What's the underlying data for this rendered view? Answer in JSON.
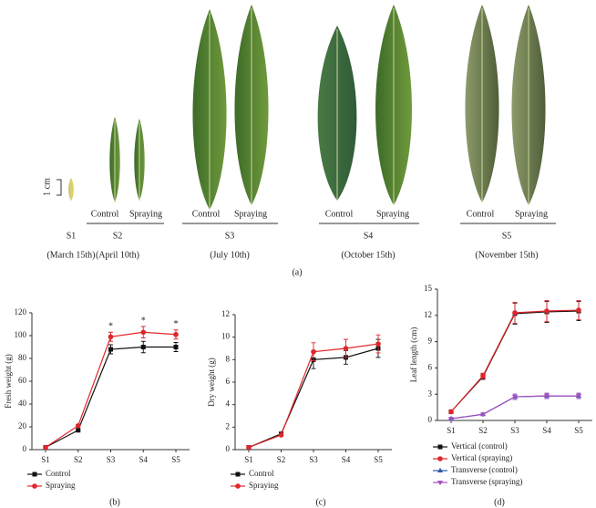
{
  "panel_a": {
    "scale": "1 cm",
    "label": "(a)",
    "stages": [
      {
        "name": "S1",
        "date": "(March 15th)",
        "treatments": []
      },
      {
        "name": "S2",
        "date": "(April 10th)",
        "treatments": [
          "Control",
          "Spraying"
        ]
      },
      {
        "name": "S3",
        "date": "(July 10th)",
        "treatments": [
          "Control",
          "Spraying"
        ]
      },
      {
        "name": "S4",
        "date": "(October 15th)",
        "treatments": [
          "Control",
          "Spraying"
        ]
      },
      {
        "name": "S5",
        "date": "(November 15th)",
        "treatments": [
          "Control",
          "Spraying"
        ]
      }
    ]
  },
  "chart_data": [
    {
      "type": "line",
      "panel_label": "(b)",
      "y_label": "Fresh weight (g)",
      "categories": [
        "S1",
        "S2",
        "S3",
        "S4",
        "S5"
      ],
      "ylim": [
        0,
        120
      ],
      "yticks": [
        0,
        20,
        40,
        60,
        80,
        100,
        120
      ],
      "significance": [
        null,
        null,
        "*",
        "*",
        "*"
      ],
      "series": [
        {
          "name": "Control",
          "color": "#111111",
          "marker": "square",
          "values": [
            2,
            17,
            88,
            90,
            90
          ],
          "errors": [
            1,
            1,
            4,
            5,
            4
          ]
        },
        {
          "name": "Spraying",
          "color": "#e0262b",
          "marker": "circle",
          "values": [
            2,
            21,
            99,
            103,
            101
          ],
          "errors": [
            1,
            1,
            4,
            5,
            4
          ]
        }
      ]
    },
    {
      "type": "line",
      "panel_label": "(c)",
      "y_label": "Dry weight (g)",
      "categories": [
        "S1",
        "S2",
        "S3",
        "S4",
        "S5"
      ],
      "ylim": [
        0,
        12
      ],
      "yticks": [
        0,
        2,
        4,
        6,
        8,
        10,
        12
      ],
      "series": [
        {
          "name": "Control",
          "color": "#111111",
          "marker": "square",
          "values": [
            0.2,
            1.4,
            8.0,
            8.2,
            9.0
          ],
          "errors": [
            0.1,
            0.1,
            0.8,
            0.6,
            0.8
          ]
        },
        {
          "name": "Spraying",
          "color": "#e0262b",
          "marker": "circle",
          "values": [
            0.2,
            1.3,
            8.7,
            9.0,
            9.4
          ],
          "errors": [
            0.1,
            0.1,
            0.8,
            0.8,
            0.8
          ]
        }
      ]
    },
    {
      "type": "line",
      "panel_label": "(d)",
      "y_label": "Leaf length (cm)",
      "categories": [
        "S1",
        "S2",
        "S3",
        "S4",
        "S5"
      ],
      "ylim": [
        0,
        15
      ],
      "yticks": [
        0,
        3,
        6,
        9,
        12,
        15
      ],
      "series": [
        {
          "name": "Vertical (control)",
          "color": "#111111",
          "marker": "square",
          "values": [
            1.0,
            5.0,
            12.2,
            12.4,
            12.5
          ],
          "errors": [
            0.1,
            0.3,
            1.2,
            1.2,
            1.1
          ]
        },
        {
          "name": "Vertical (spraying)",
          "color": "#e0262b",
          "marker": "circle",
          "values": [
            1.0,
            5.1,
            12.3,
            12.5,
            12.6
          ],
          "errors": [
            0.1,
            0.3,
            1.2,
            1.2,
            1.1
          ]
        },
        {
          "name": "Transverse (control)",
          "color": "#2a5caa",
          "marker": "triangle",
          "values": [
            0.2,
            0.7,
            2.7,
            2.8,
            2.8
          ],
          "errors": [
            0.05,
            0.1,
            0.3,
            0.3,
            0.3
          ]
        },
        {
          "name": "Transverse (spraying)",
          "color": "#a24fc0",
          "marker": "triangle-down",
          "values": [
            0.2,
            0.7,
            2.7,
            2.8,
            2.8
          ],
          "errors": [
            0.05,
            0.1,
            0.3,
            0.3,
            0.3
          ]
        }
      ]
    }
  ]
}
